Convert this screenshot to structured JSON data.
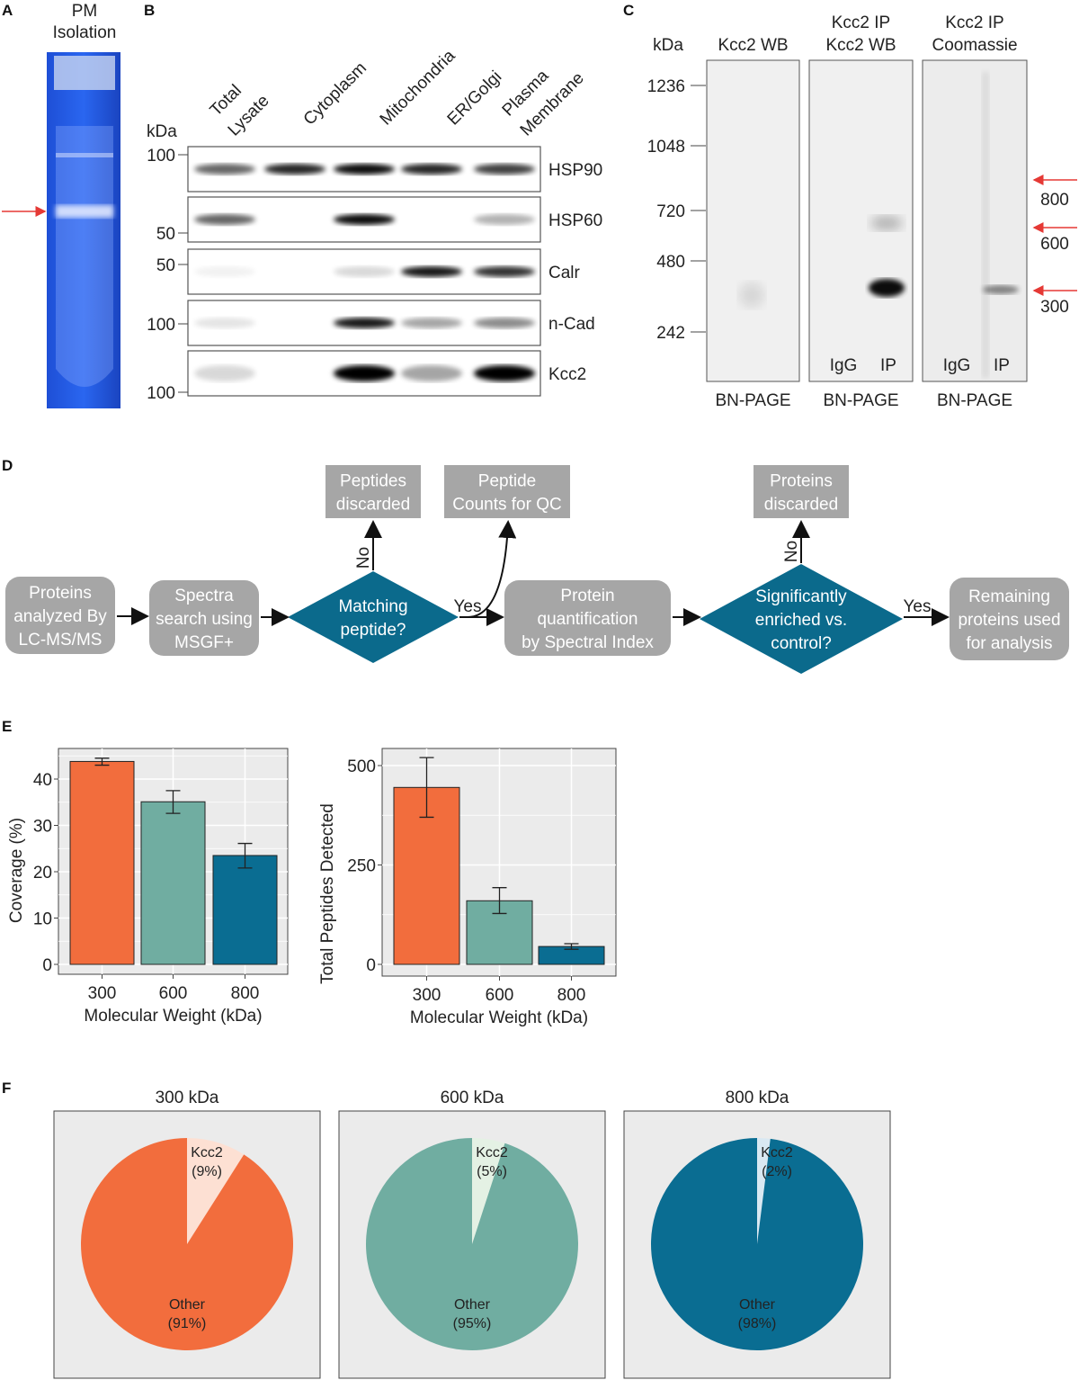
{
  "panels": {
    "A": {
      "letter": "A",
      "title_line1": "PM",
      "title_line2": "Isolation"
    },
    "B": {
      "letter": "B",
      "kda_label": "kDa",
      "lanes": [
        [
          "Total",
          "Lysate"
        ],
        [
          "Cytoplasm"
        ],
        [
          "Mitochondria"
        ],
        [
          "ER/Golgi"
        ],
        [
          "Plasma",
          "Membrane"
        ]
      ],
      "blots": [
        {
          "name": "HSP90",
          "marker": "100"
        },
        {
          "name": "HSP60",
          "marker": "50"
        },
        {
          "name": "Calr",
          "marker": "50"
        },
        {
          "name": "n-Cad",
          "marker": "100"
        },
        {
          "name": "Kcc2",
          "marker": "100"
        }
      ]
    },
    "C": {
      "letter": "C",
      "kda_label": "kDa",
      "markers": [
        "1236",
        "1048",
        "720",
        "480",
        "242"
      ],
      "gels": [
        {
          "title1": "",
          "title2": "Kcc2 WB",
          "lane_labels": [],
          "footer": "BN-PAGE"
        },
        {
          "title1": "Kcc2 IP",
          "title2": "Kcc2 WB",
          "lane_labels": [
            "IgG",
            "IP"
          ],
          "footer": "BN-PAGE"
        },
        {
          "title1": "Kcc2 IP",
          "title2": "Coomassie",
          "lane_labels": [
            "IgG",
            "IP"
          ],
          "footer": "BN-PAGE"
        }
      ],
      "arrow_labels": [
        "800",
        "600",
        "300"
      ],
      "arrow_color": "#e53935"
    },
    "D": {
      "letter": "D",
      "nodes": {
        "proteins": [
          "Proteins",
          "analyzed By",
          "LC-MS/MS"
        ],
        "spectra": [
          "Spectra",
          "search using",
          "MSGF+"
        ],
        "matching": [
          "Matching",
          "peptide?"
        ],
        "quant": [
          "Protein",
          "quantification",
          "by Spectral Index"
        ],
        "enriched": [
          "Significantly",
          "enriched vs.",
          "control?"
        ],
        "remaining": [
          "Remaining",
          "proteins used",
          "for analysis"
        ],
        "pep_discarded": [
          "Peptides",
          "discarded"
        ],
        "pep_counts": [
          "Peptide",
          "Counts for QC"
        ],
        "prot_discarded": [
          "Proteins",
          "discarded"
        ]
      },
      "edge_labels": {
        "no1": "No",
        "yes1": "Yes",
        "no2": "No",
        "yes2": "Yes"
      },
      "box_color": "#a6a6a6",
      "diamond_color": "#0b6a8c"
    },
    "E": {
      "letter": "E"
    },
    "F": {
      "letter": "F"
    }
  },
  "chart_data": [
    {
      "type": "bar",
      "categories": [
        "300",
        "600",
        "800"
      ],
      "values": [
        43.8,
        35.1,
        23.5
      ],
      "error_low": [
        43.0,
        32.6,
        20.8
      ],
      "error_high": [
        44.5,
        37.5,
        26.1
      ],
      "xlabel": "Molecular Weight (kDa)",
      "ylabel": "Coverage (%)",
      "yticks": [
        "0",
        "10",
        "20",
        "30",
        "40"
      ],
      "ylim": [
        0,
        45
      ],
      "colors": [
        "#f26d3d",
        "#70ada1",
        "#0a6d92"
      ],
      "grid": true
    },
    {
      "type": "bar",
      "categories": [
        "300",
        "600",
        "800"
      ],
      "values": [
        445,
        160,
        45
      ],
      "error_low": [
        370,
        128,
        38
      ],
      "error_high": [
        520,
        193,
        52
      ],
      "xlabel": "Molecular Weight (kDa)",
      "ylabel": "Total Peptides Detected",
      "yticks": [
        "0",
        "250",
        "500"
      ],
      "ylim": [
        0,
        540
      ],
      "colors": [
        "#f26d3d",
        "#70ada1",
        "#0a6d92"
      ],
      "grid": true
    },
    {
      "type": "pie",
      "title": "300 kDa",
      "slices": [
        {
          "label": "Kcc2",
          "pct_label": "(9%)",
          "value": 9,
          "color": "#fde0d3"
        },
        {
          "label": "Other",
          "pct_label": "(91%)",
          "value": 91,
          "color": "#f26d3d"
        }
      ]
    },
    {
      "type": "pie",
      "title": "600 kDa",
      "slices": [
        {
          "label": "Kcc2",
          "pct_label": "(5%)",
          "value": 5,
          "color": "#e4f1e4"
        },
        {
          "label": "Other",
          "pct_label": "(95%)",
          "value": 95,
          "color": "#70ada1"
        }
      ]
    },
    {
      "type": "pie",
      "title": "800 kDa",
      "slices": [
        {
          "label": "Kcc2",
          "pct_label": "(2%)",
          "value": 2,
          "color": "#d9e8f2"
        },
        {
          "label": "Other",
          "pct_label": "(98%)",
          "value": 98,
          "color": "#0a6d92"
        }
      ]
    }
  ]
}
